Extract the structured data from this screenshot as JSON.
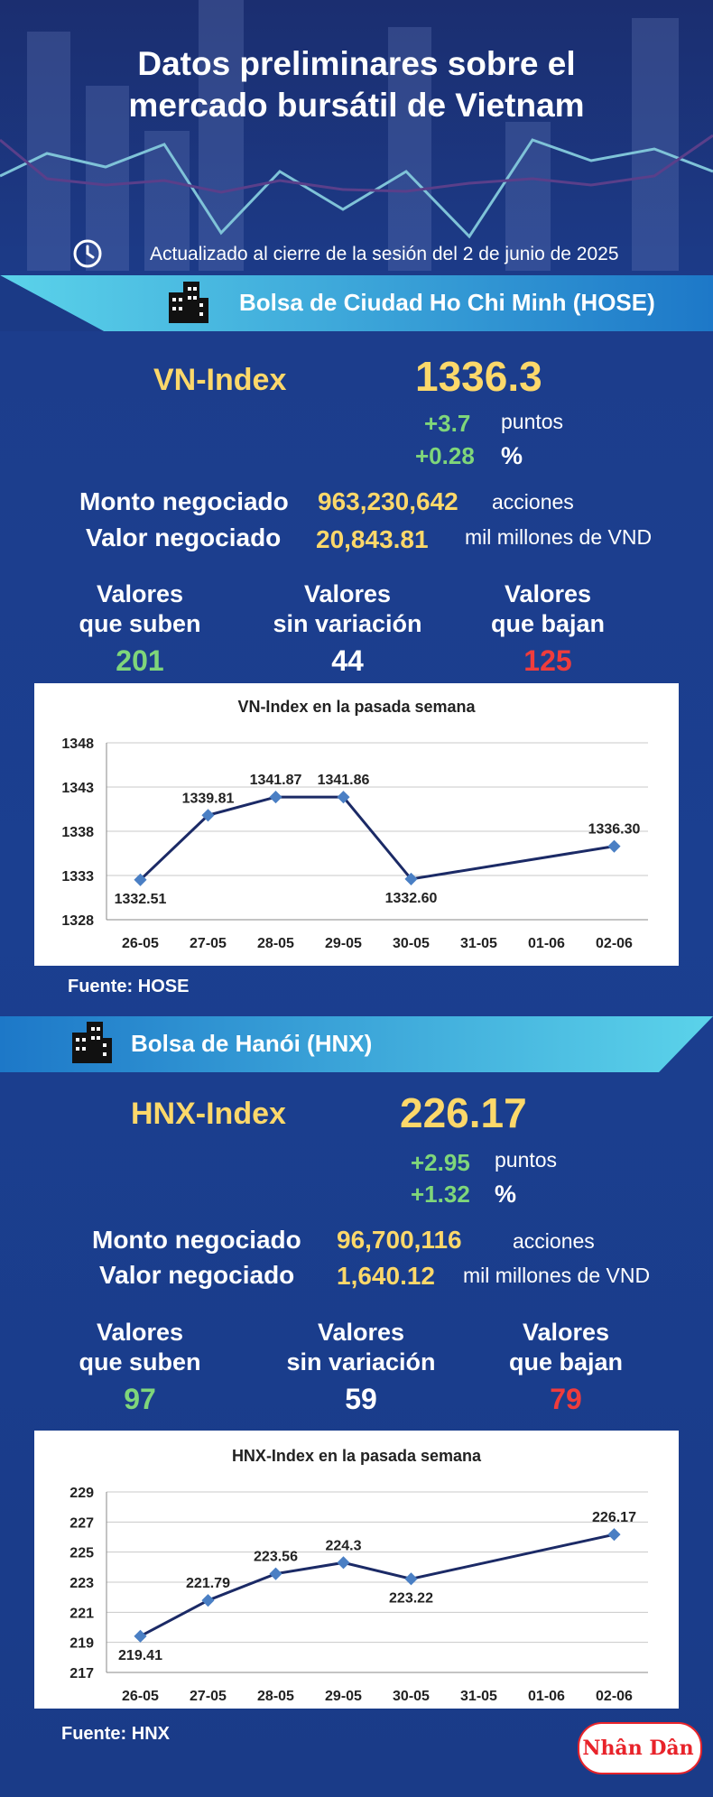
{
  "header": {
    "title_line1": "Datos preliminares sobre el",
    "title_line2": "mercado bursátil de Vietnam",
    "updated": "Actualizado al cierre de la sesión del 2 de junio de 2025"
  },
  "hose": {
    "exchange": "Bolsa de Ciudad Ho Chi Minh (HOSE)",
    "index_name": "VN-Index",
    "index_value": "1336.3",
    "change_points": "+3.7",
    "points_label": "puntos",
    "change_pct": "+0.28",
    "pct_label": "%",
    "volume_label": "Monto negociado",
    "volume_value": "963,230,642",
    "volume_unit": "acciones",
    "turnover_label": "Valor negociado",
    "turnover_value": "20,843.81",
    "turnover_unit": "mil millones de VND",
    "up_label1": "Valores",
    "up_label2": "que suben",
    "up_value": "201",
    "flat_label1": "Valores",
    "flat_label2": "sin variación",
    "flat_value": "44",
    "down_label1": "Valores",
    "down_label2": "que bajan",
    "down_value": "125",
    "source": "Fuente: HOSE"
  },
  "hnx": {
    "exchange": "Bolsa de Hanói (HNX)",
    "index_name": "HNX-Index",
    "index_value": "226.17",
    "change_points": "+2.95",
    "points_label": "puntos",
    "change_pct": "+1.32",
    "pct_label": "%",
    "volume_label": "Monto negociado",
    "volume_value": "96,700,116",
    "volume_unit": "acciones",
    "turnover_label": "Valor negociado",
    "turnover_value": "1,640.12",
    "turnover_unit": "mil millones de VND",
    "up_label1": "Valores",
    "up_label2": "que suben",
    "up_value": "97",
    "flat_label1": "Valores",
    "flat_label2": "sin variación",
    "flat_value": "59",
    "down_label1": "Valores",
    "down_label2": "que bajan",
    "down_value": "79",
    "source": "Fuente:  HNX"
  },
  "colors": {
    "up": "#7fd67a",
    "flat": "#ffffff",
    "down": "#f03c3c",
    "accent": "#fcd86a",
    "band": "#3aaed8",
    "line": "#1b2a66",
    "marker": "#4a7fc4"
  },
  "logo": "Nhân Dân",
  "chart_data": [
    {
      "type": "line",
      "title": "VN-Index en la pasada semana",
      "categories": [
        "26-05",
        "27-05",
        "28-05",
        "29-05",
        "30-05",
        "31-05",
        "01-06",
        "02-06"
      ],
      "values": [
        1332.51,
        1339.81,
        1341.87,
        1341.86,
        1332.6,
        null,
        null,
        1336.3
      ],
      "labels": [
        "1332.51",
        "1339.81",
        "1341.87",
        "1341.86",
        "1332.60",
        "",
        "",
        "1336.30"
      ],
      "yticks": [
        1328,
        1333,
        1338,
        1343,
        1348
      ],
      "ylim": [
        1328,
        1348
      ],
      "grid": true
    },
    {
      "type": "line",
      "title": "HNX-Index en la pasada semana",
      "categories": [
        "26-05",
        "27-05",
        "28-05",
        "29-05",
        "30-05",
        "31-05",
        "01-06",
        "02-06"
      ],
      "values": [
        219.41,
        221.79,
        223.56,
        224.3,
        223.22,
        null,
        null,
        226.17
      ],
      "labels": [
        "219.41",
        "221.79",
        "223.56",
        "224.3",
        "223.22",
        "",
        "",
        "226.17"
      ],
      "yticks": [
        217,
        219,
        221,
        223,
        225,
        227,
        229
      ],
      "ylim": [
        217,
        229
      ],
      "grid": true
    }
  ]
}
